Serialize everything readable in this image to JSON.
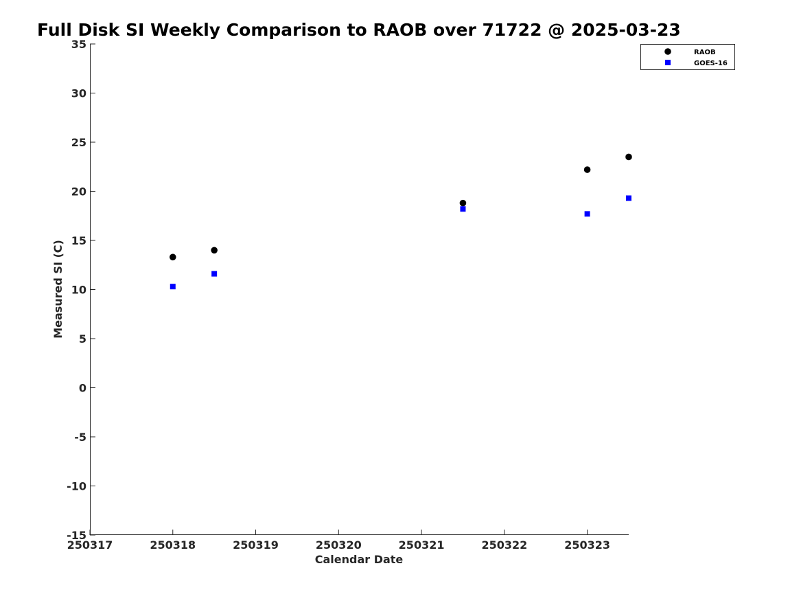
{
  "chart_data": {
    "type": "scatter",
    "title": "Full Disk SI Weekly Comparison to RAOB over 71722 @ 2025-03-23",
    "xlabel": "Calendar Date",
    "ylabel": "Measured SI (C)",
    "xlim": [
      250317,
      250323.5
    ],
    "ylim": [
      -15,
      35
    ],
    "xticks": [
      250317,
      250318,
      250319,
      250320,
      250321,
      250322,
      250323
    ],
    "xtick_labels": [
      "250317",
      "250318",
      "250319",
      "250320",
      "250321",
      "250322",
      "250323"
    ],
    "yticks": [
      -15,
      -10,
      -5,
      0,
      5,
      10,
      15,
      20,
      25,
      30,
      35
    ],
    "ytick_labels": [
      "-15",
      "-10",
      "-5",
      "0",
      "5",
      "10",
      "15",
      "20",
      "25",
      "30",
      "35"
    ],
    "grid": false,
    "legend_position": "top-right",
    "series": [
      {
        "name": "RAOB",
        "marker": "circle",
        "color": "#000000",
        "points": [
          {
            "x": 250318.0,
            "y": 13.3
          },
          {
            "x": 250318.5,
            "y": 14.0
          },
          {
            "x": 250321.5,
            "y": 18.8
          },
          {
            "x": 250323.0,
            "y": 22.2
          },
          {
            "x": 250323.5,
            "y": 23.5
          }
        ]
      },
      {
        "name": "GOES-16",
        "marker": "square",
        "color": "#0000ff",
        "points": [
          {
            "x": 250318.0,
            "y": 10.3
          },
          {
            "x": 250318.5,
            "y": 11.6
          },
          {
            "x": 250321.5,
            "y": 18.2
          },
          {
            "x": 250323.0,
            "y": 17.7
          },
          {
            "x": 250323.5,
            "y": 19.3
          }
        ]
      }
    ]
  }
}
